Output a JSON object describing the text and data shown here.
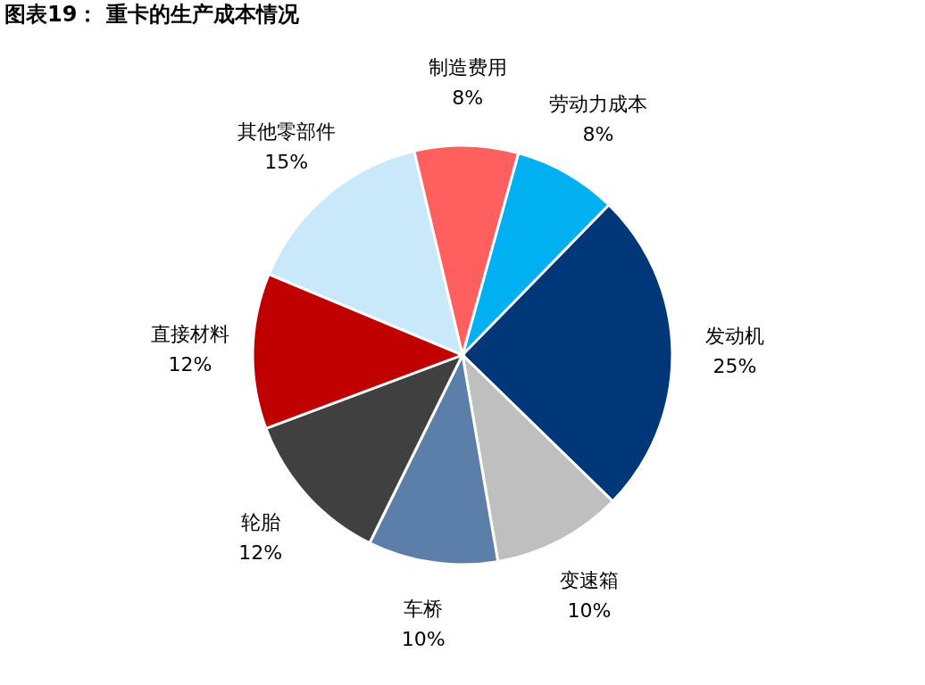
{
  "chart_data": {
    "type": "pie",
    "title": "图表19： 重卡的生产成本情况",
    "categories": [
      "劳动力成本",
      "发动机",
      "变速箱",
      "车桥",
      "轮胎",
      "直接材料",
      "其他零部件",
      "制造费用"
    ],
    "values": [
      8,
      25,
      10,
      10,
      12,
      12,
      15,
      8
    ],
    "value_labels": [
      "8%",
      "25%",
      "10%",
      "10%",
      "12%",
      "12%",
      "15%",
      "8%"
    ],
    "colors": [
      "#00b0f0",
      "#003778",
      "#bfbfbf",
      "#5b7fa8",
      "#404040",
      "#c00000",
      "#c9e8fa",
      "#ff5f5f"
    ],
    "legend": false
  }
}
